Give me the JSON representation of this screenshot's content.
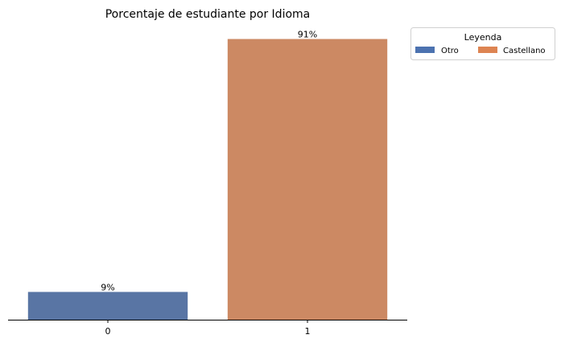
{
  "chart_data": {
    "type": "bar",
    "title": "Porcentaje de estudiante por Idioma",
    "xlabel": "",
    "ylabel": "",
    "categories": [
      "0",
      "1"
    ],
    "values": [
      9,
      91
    ],
    "value_labels": [
      "9%",
      "91%"
    ],
    "bar_colors": [
      "#5975a4",
      "#cc8963"
    ],
    "ylim": [
      0,
      100
    ],
    "grid": false,
    "legend": {
      "title": "Leyenda",
      "placement": "outside-top-right",
      "entries": [
        {
          "label": "Otro",
          "color": "#4c72b0"
        },
        {
          "label": "Castellano",
          "color": "#dd8452"
        }
      ]
    }
  }
}
